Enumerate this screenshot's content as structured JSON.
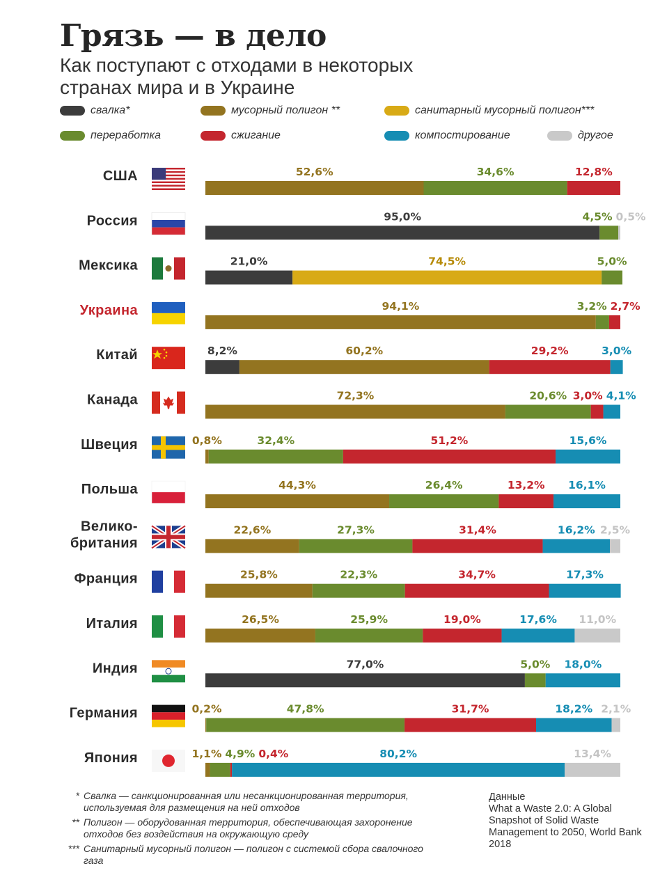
{
  "title": "Грязь — в дело",
  "subtitle": "Как поступают с отходами в некоторых странах мира и в Украине",
  "legend": [
    {
      "key": "svalka",
      "label": "свалка*",
      "color": "#3c3c3c"
    },
    {
      "key": "poligon",
      "label": "мусорный полигон **",
      "color": "#937420"
    },
    {
      "key": "sanit",
      "label": "санитарный мусорный полигон***",
      "color": "#d8aa16"
    },
    {
      "key": "pererabotka",
      "label": "переработка",
      "color": "#6a8b2e"
    },
    {
      "key": "szhiganie",
      "label": "сжигание",
      "color": "#c4262e"
    },
    {
      "key": "kompost",
      "label": "компостирование",
      "color": "#168db3"
    },
    {
      "key": "drugoe",
      "label": "другое",
      "color": "#c9c9c9"
    }
  ],
  "chart_data": {
    "type": "bar",
    "orientation": "horizontal",
    "stacked": true,
    "normalized": true,
    "series_keys": [
      "svalka",
      "poligon",
      "sanit",
      "pererabotka",
      "szhiganie",
      "kompost",
      "drugoe"
    ],
    "countries": [
      {
        "name": "США",
        "flag": "us",
        "highlight": false,
        "segments": [
          {
            "s": "poligon",
            "v": 52.6,
            "label": "52,6%"
          },
          {
            "s": "pererabotka",
            "v": 34.6,
            "label": "34,6%"
          },
          {
            "s": "szhiganie",
            "v": 12.8,
            "label": "12,8%"
          }
        ]
      },
      {
        "name": "Россия",
        "flag": "ru",
        "highlight": false,
        "segments": [
          {
            "s": "svalka",
            "v": 95.0,
            "label": "95,0%"
          },
          {
            "s": "pererabotka",
            "v": 4.5,
            "label": "4,5%"
          },
          {
            "s": "drugoe",
            "v": 0.5,
            "label": "0,5%"
          }
        ]
      },
      {
        "name": "Мексика",
        "flag": "mx",
        "highlight": false,
        "segments": [
          {
            "s": "svalka",
            "v": 21.0,
            "label": "21,0%"
          },
          {
            "s": "sanit",
            "v": 74.5,
            "label": "74,5%"
          },
          {
            "s": "pererabotka",
            "v": 5.0,
            "label": "5,0%"
          }
        ]
      },
      {
        "name": "Украина",
        "flag": "ua",
        "highlight": true,
        "segments": [
          {
            "s": "poligon",
            "v": 94.1,
            "label": "94,1%"
          },
          {
            "s": "pererabotka",
            "v": 3.2,
            "label": "3,2%"
          },
          {
            "s": "szhiganie",
            "v": 2.7,
            "label": "2,7%"
          }
        ]
      },
      {
        "name": "Китай",
        "flag": "cn",
        "highlight": false,
        "segments": [
          {
            "s": "svalka",
            "v": 8.2,
            "label": "8,2%"
          },
          {
            "s": "poligon",
            "v": 60.2,
            "label": "60,2%"
          },
          {
            "s": "szhiganie",
            "v": 29.2,
            "label": "29,2%"
          },
          {
            "s": "kompost",
            "v": 3.0,
            "label": "3,0%"
          }
        ]
      },
      {
        "name": "Канада",
        "flag": "ca",
        "highlight": false,
        "segments": [
          {
            "s": "poligon",
            "v": 72.3,
            "label": "72,3%"
          },
          {
            "s": "pererabotka",
            "v": 20.6,
            "label": "20,6%"
          },
          {
            "s": "szhiganie",
            "v": 3.0,
            "label": "3,0%"
          },
          {
            "s": "kompost",
            "v": 4.1,
            "label": "4,1%"
          }
        ]
      },
      {
        "name": "Швеция",
        "flag": "se",
        "highlight": false,
        "segments": [
          {
            "s": "poligon",
            "v": 0.8,
            "label": "0,8%"
          },
          {
            "s": "pererabotka",
            "v": 32.4,
            "label": "32,4%"
          },
          {
            "s": "szhiganie",
            "v": 51.2,
            "label": "51,2%"
          },
          {
            "s": "kompost",
            "v": 15.6,
            "label": "15,6%"
          }
        ]
      },
      {
        "name": "Польша",
        "flag": "pl",
        "highlight": false,
        "segments": [
          {
            "s": "poligon",
            "v": 44.3,
            "label": "44,3%"
          },
          {
            "s": "pererabotka",
            "v": 26.4,
            "label": "26,4%"
          },
          {
            "s": "szhiganie",
            "v": 13.2,
            "label": "13,2%"
          },
          {
            "s": "kompost",
            "v": 16.1,
            "label": "16,1%"
          }
        ]
      },
      {
        "name": "Велико-\nбритания",
        "flag": "gb",
        "highlight": false,
        "segments": [
          {
            "s": "poligon",
            "v": 22.6,
            "label": "22,6%"
          },
          {
            "s": "pererabotka",
            "v": 27.3,
            "label": "27,3%"
          },
          {
            "s": "szhiganie",
            "v": 31.4,
            "label": "31,4%"
          },
          {
            "s": "kompost",
            "v": 16.2,
            "label": "16,2%"
          },
          {
            "s": "drugoe",
            "v": 2.5,
            "label": "2,5%"
          }
        ]
      },
      {
        "name": "Франция",
        "flag": "fr",
        "highlight": false,
        "segments": [
          {
            "s": "poligon",
            "v": 25.8,
            "label": "25,8%"
          },
          {
            "s": "pererabotka",
            "v": 22.3,
            "label": "22,3%"
          },
          {
            "s": "szhiganie",
            "v": 34.7,
            "label": "34,7%"
          },
          {
            "s": "kompost",
            "v": 17.3,
            "label": "17,3%"
          }
        ]
      },
      {
        "name": "Италия",
        "flag": "it",
        "highlight": false,
        "segments": [
          {
            "s": "poligon",
            "v": 26.5,
            "label": "26,5%"
          },
          {
            "s": "pererabotka",
            "v": 25.9,
            "label": "25,9%"
          },
          {
            "s": "szhiganie",
            "v": 19.0,
            "label": "19,0%"
          },
          {
            "s": "kompost",
            "v": 17.6,
            "label": "17,6%"
          },
          {
            "s": "drugoe",
            "v": 11.0,
            "label": "11,0%"
          }
        ]
      },
      {
        "name": "Индия",
        "flag": "in",
        "highlight": false,
        "segments": [
          {
            "s": "svalka",
            "v": 77.0,
            "label": "77,0%"
          },
          {
            "s": "pererabotka",
            "v": 5.0,
            "label": "5,0%"
          },
          {
            "s": "kompost",
            "v": 18.0,
            "label": "18,0%"
          }
        ]
      },
      {
        "name": "Германия",
        "flag": "de",
        "highlight": false,
        "segments": [
          {
            "s": "poligon",
            "v": 0.2,
            "label": "0,2%"
          },
          {
            "s": "pererabotka",
            "v": 47.8,
            "label": "47,8%"
          },
          {
            "s": "szhiganie",
            "v": 31.7,
            "label": "31,7%"
          },
          {
            "s": "kompost",
            "v": 18.2,
            "label": "18,2%"
          },
          {
            "s": "drugoe",
            "v": 2.1,
            "label": "2,1%"
          }
        ]
      },
      {
        "name": "Япония",
        "flag": "jp",
        "highlight": false,
        "segments": [
          {
            "s": "poligon",
            "v": 1.1,
            "label": "1,1%"
          },
          {
            "s": "pererabotka",
            "v": 4.9,
            "label": "4,9%"
          },
          {
            "s": "szhiganie",
            "v": 0.4,
            "label": "0,4%"
          },
          {
            "s": "kompost",
            "v": 80.2,
            "label": "80,2%"
          },
          {
            "s": "drugoe",
            "v": 13.4,
            "label": "13,4%"
          }
        ]
      }
    ]
  },
  "footnotes": [
    {
      "mark": "*",
      "text": "Свалка — санкционированная или несанкционированная территория, используемая для размещения на ней отходов"
    },
    {
      "mark": "**",
      "text": "Полигон — оборудованная территория, обеспечивающая захоронение отходов без воздействия на окружающую среду"
    },
    {
      "mark": "***",
      "text": "Санитарный мусорный полигон — полигон с системой сбора свалочного газа"
    }
  ],
  "source": {
    "line1": "Данные",
    "line2": "What a Waste 2.0: A Global Snapshot of Solid Waste Management to 2050, World Bank 2018"
  },
  "highlight_color": "#c4262e",
  "label_colors": {
    "sanit": "#b68a06",
    "drugoe": "#c4c4c4"
  }
}
